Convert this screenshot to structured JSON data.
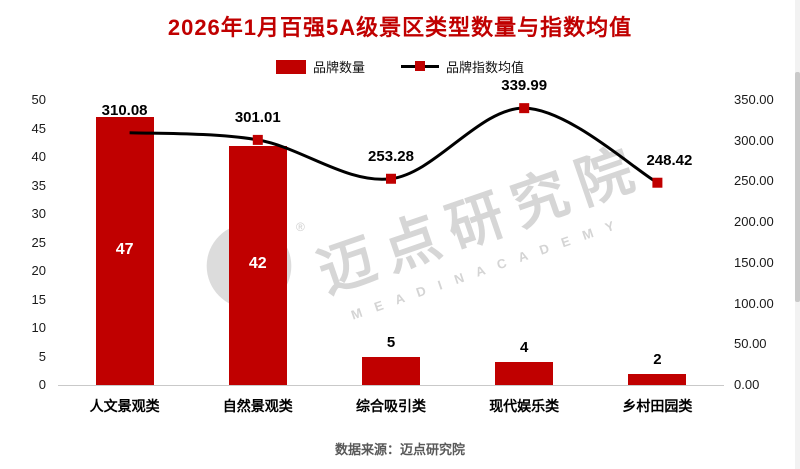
{
  "title": "2026年1月百强5A级景区类型数量与指数均值",
  "legend": {
    "bars": "品牌数量",
    "line": "品牌指数均值"
  },
  "footer": "数据来源：迈点研究院",
  "watermark": {
    "cn": "迈点研究院",
    "en": "M E A D I N   A C A D E M Y",
    "reg": "®"
  },
  "colors": {
    "bar": "#C00000",
    "line": "#000000",
    "marker": "#C00000",
    "title": "#C00000"
  },
  "chart_data": {
    "type": "bar+line",
    "title": "2026年1月百强5A级景区类型数量与指数均值",
    "categories": [
      "人文景观类",
      "自然景观类",
      "综合吸引类",
      "现代娱乐类",
      "乡村田园类"
    ],
    "series": [
      {
        "name": "品牌数量",
        "type": "bar",
        "axis": "left",
        "values": [
          47,
          42,
          5,
          4,
          2
        ]
      },
      {
        "name": "品牌指数均值",
        "type": "line",
        "axis": "right",
        "values": [
          310.08,
          301.01,
          253.28,
          339.99,
          248.42
        ]
      }
    ],
    "bar_labels": [
      "47",
      "42",
      "5",
      "4",
      "2"
    ],
    "line_labels": [
      "310.08",
      "301.01",
      "253.28",
      "339.99",
      "248.42"
    ],
    "left_axis": {
      "min": 0,
      "max": 50,
      "step": 5,
      "ticks": [
        "0",
        "5",
        "10",
        "15",
        "20",
        "25",
        "30",
        "35",
        "40",
        "45",
        "50"
      ]
    },
    "right_axis": {
      "min": 0,
      "max": 350,
      "step": 50,
      "ticks": [
        "0.00",
        "50.00",
        "100.00",
        "150.00",
        "200.00",
        "250.00",
        "300.00",
        "350.00"
      ]
    },
    "grid": false,
    "legend_position": "top"
  }
}
